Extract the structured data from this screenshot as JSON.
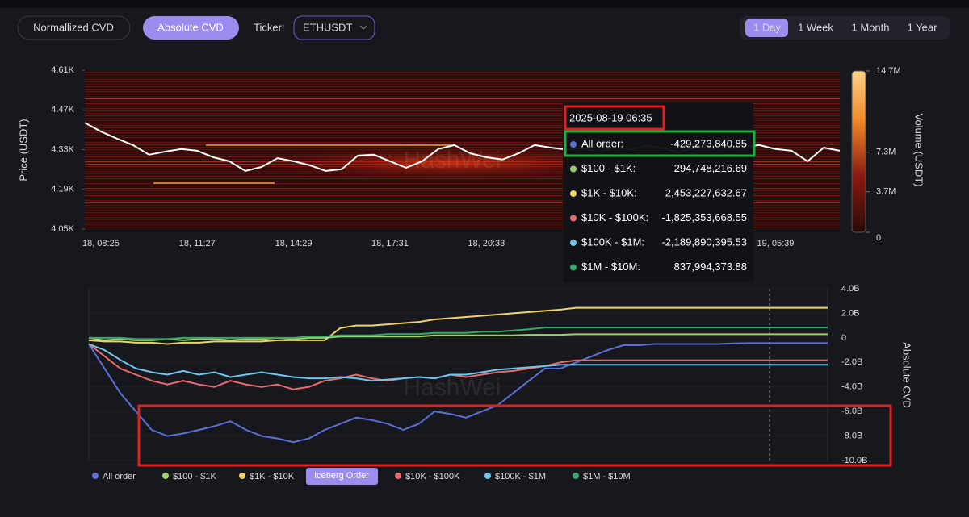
{
  "controls": {
    "buttons": [
      "Normallized CVD",
      "Absolute CVD"
    ],
    "ticker_label": "Ticker:",
    "ticker": "ETHUSDT",
    "ranges": [
      "1 Day",
      "1 Week",
      "1 Month",
      "1 Year"
    ],
    "iceberg_button": "Iceberg Order"
  },
  "watermark": "HashWei",
  "tooltip": {
    "time": "2025-08-19 06:35",
    "rows": [
      {
        "label": "All order:",
        "value": "-429,273,840.85"
      },
      {
        "label": "$100 - $1K:",
        "value": "294,748,216.69"
      },
      {
        "label": "$1K - $10K:",
        "value": "2,453,227,632.67"
      },
      {
        "label": "$10K - $100K:",
        "value": "-1,825,353,668.55"
      },
      {
        "label": "$100K - $1M:",
        "value": "-2,189,890,395.53"
      },
      {
        "label": "$1M - $10M:",
        "value": "837,994,373.88"
      }
    ]
  },
  "chart_data": [
    {
      "type": "line",
      "y_label": "Price (USDT)",
      "categories": [
        null,
        "18, 08:25",
        null,
        null,
        null,
        null,
        null,
        "18, 11:27",
        null,
        null,
        null,
        null,
        null,
        "18, 14:29",
        null,
        null,
        null,
        null,
        null,
        "18, 17:31",
        null,
        null,
        null,
        null,
        null,
        "18, 20:33",
        null,
        null,
        null,
        null,
        null,
        null,
        null,
        null,
        null,
        null,
        null,
        null,
        null,
        null,
        null,
        null,
        null,
        "19, 05:39",
        null,
        null,
        null,
        null
      ],
      "series": [
        {
          "color": "#ffffff",
          "values": [
            4425,
            4394,
            4369,
            4346,
            4312,
            4323,
            4332,
            4326,
            4303,
            4289,
            4255,
            4269,
            4300,
            4289,
            4275,
            4255,
            4261,
            4309,
            4312,
            4289,
            4266,
            4289,
            4332,
            4346,
            4317,
            4303,
            4295,
            4317,
            4346,
            4337,
            4330,
            4335,
            4320,
            4340,
            4330,
            4345,
            4335,
            4320,
            4340,
            4350,
            4335,
            4340,
            4346,
            4332,
            4326,
            4289,
            4337,
            4326
          ]
        }
      ],
      "ylim": [
        4050,
        4610
      ],
      "yticks": [
        {
          "value": 4610,
          "label": "4.61K"
        },
        {
          "value": 4470,
          "label": "4.47K"
        },
        {
          "value": 4330,
          "label": "4.33K"
        },
        {
          "value": 4190,
          "label": "4.19K"
        },
        {
          "value": 4050,
          "label": "4.05K"
        }
      ],
      "colorbar": {
        "label": "Volume (USDT)",
        "lim": [
          0,
          14700000
        ],
        "ticks": [
          {
            "value": 14700000,
            "label": "14.7M"
          },
          {
            "value": 7300000,
            "label": "7.3M"
          },
          {
            "value": 3700000,
            "label": "3.7M"
          },
          0
        ]
      }
    },
    {
      "type": "line",
      "y_label": "Absolute CVD",
      "series": [
        {
          "name": "All order",
          "color": "#5b6fd6",
          "values": [
            -0.5,
            -2.5,
            -4.5,
            -6.0,
            -7.5,
            -8.0,
            -7.8,
            -7.5,
            -7.2,
            -6.8,
            -7.5,
            -8.0,
            -8.2,
            -8.5,
            -8.2,
            -7.5,
            -7.0,
            -6.5,
            -6.7,
            -7.0,
            -7.5,
            -7.0,
            -6.0,
            -6.2,
            -6.5,
            -6.0,
            -5.5,
            -4.5,
            -3.5,
            -2.5,
            -2.5,
            -2.0,
            -1.5,
            -1.0,
            -0.6,
            -0.6,
            -0.5,
            -0.5,
            -0.5,
            -0.5,
            -0.5,
            -0.45,
            -0.43,
            -0.43,
            -0.43,
            -0.43,
            -0.43,
            -0.43
          ]
        },
        {
          "name": "$100 - $1K",
          "color": "#9ad16b",
          "values": [
            0,
            -0.2,
            -0.1,
            -0.2,
            -0.2,
            -0.1,
            -0.2,
            -0.1,
            -0.1,
            -0.2,
            -0.1,
            -0.1,
            0,
            -0.1,
            0,
            0,
            0.1,
            0.1,
            0.1,
            0.1,
            0.1,
            0.1,
            0.2,
            0.2,
            0.2,
            0.2,
            0.2,
            0.2,
            0.25,
            0.25,
            0.25,
            0.29,
            0.29,
            0.29,
            0.29,
            0.29,
            0.29,
            0.29,
            0.29,
            0.29,
            0.29,
            0.29,
            0.29,
            0.29,
            0.29,
            0.29,
            0.29,
            0.29
          ]
        },
        {
          "name": "$1K - $10K",
          "color": "#f2d16b",
          "values": [
            -0.2,
            -0.3,
            -0.3,
            -0.4,
            -0.4,
            -0.5,
            -0.4,
            -0.4,
            -0.3,
            -0.3,
            -0.3,
            -0.3,
            -0.2,
            -0.2,
            -0.2,
            -0.2,
            0.8,
            1.0,
            1.0,
            1.1,
            1.2,
            1.3,
            1.5,
            1.6,
            1.7,
            1.8,
            1.9,
            2.0,
            2.1,
            2.2,
            2.3,
            2.45,
            2.45,
            2.45,
            2.45,
            2.45,
            2.45,
            2.45,
            2.45,
            2.45,
            2.45,
            2.45,
            2.45,
            2.45,
            2.45,
            2.45,
            2.45,
            2.45
          ]
        },
        {
          "name": "$10K - $100K",
          "color": "#e86a6a",
          "values": [
            -0.5,
            -1.5,
            -2.5,
            -3.0,
            -3.5,
            -3.8,
            -3.5,
            -3.8,
            -4.0,
            -3.5,
            -3.8,
            -4.0,
            -3.8,
            -4.2,
            -4.0,
            -3.5,
            -3.3,
            -3.0,
            -3.3,
            -3.5,
            -3.3,
            -3.2,
            -3.3,
            -3.0,
            -3.2,
            -3.0,
            -2.8,
            -2.7,
            -2.5,
            -2.3,
            -2.0,
            -1.83,
            -1.83,
            -1.83,
            -1.83,
            -1.83,
            -1.83,
            -1.83,
            -1.83,
            -1.83,
            -1.83,
            -1.83,
            -1.83,
            -1.83,
            -1.83,
            -1.83,
            -1.83,
            -1.83
          ]
        },
        {
          "name": "$100K - $1M",
          "color": "#6cc6ee",
          "values": [
            -0.5,
            -1.0,
            -1.8,
            -2.5,
            -2.8,
            -3.0,
            -2.7,
            -3.0,
            -2.8,
            -3.2,
            -3.0,
            -2.8,
            -3.0,
            -3.2,
            -3.3,
            -3.3,
            -3.2,
            -3.3,
            -3.5,
            -3.4,
            -3.3,
            -3.2,
            -3.3,
            -3.0,
            -3.0,
            -2.8,
            -2.6,
            -2.5,
            -2.4,
            -2.3,
            -2.2,
            -2.19,
            -2.19,
            -2.19,
            -2.19,
            -2.19,
            -2.19,
            -2.19,
            -2.19,
            -2.19,
            -2.19,
            -2.19,
            -2.19,
            -2.19,
            -2.19,
            -2.19,
            -2.19,
            -2.19
          ]
        },
        {
          "name": "$1M - $10M",
          "color": "#3aa86b",
          "values": [
            0,
            0,
            0,
            -0.1,
            -0.1,
            -0.1,
            0,
            0,
            0,
            0,
            0,
            0,
            0,
            0,
            0.1,
            0.1,
            0.2,
            0.2,
            0.2,
            0.3,
            0.3,
            0.3,
            0.4,
            0.4,
            0.4,
            0.5,
            0.5,
            0.6,
            0.7,
            0.84,
            0.84,
            0.84,
            0.84,
            0.84,
            0.84,
            0.84,
            0.84,
            0.84,
            0.84,
            0.84,
            0.84,
            0.84,
            0.84,
            0.84,
            0.84,
            0.84,
            0.84,
            0.84
          ]
        }
      ],
      "ylim": [
        -10,
        4
      ],
      "yticks": [
        {
          "value": 4,
          "label": "4.0B"
        },
        {
          "value": 2,
          "label": "2.0B"
        },
        0,
        {
          "value": -2,
          "label": "-2.0B"
        },
        {
          "value": -4,
          "label": "-4.0B"
        },
        {
          "value": -6,
          "label": "-6.0B"
        },
        {
          "value": -8,
          "label": "-8.0B"
        },
        {
          "value": -10,
          "label": "-10.0B"
        }
      ]
    }
  ]
}
